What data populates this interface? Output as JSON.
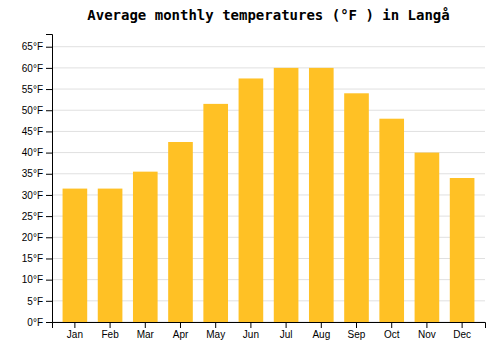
{
  "chart_data": {
    "type": "bar",
    "title": "Average monthly temperatures (°F ) in Langå",
    "categories": [
      "Jan",
      "Feb",
      "Mar",
      "Apr",
      "May",
      "Jun",
      "Jul",
      "Aug",
      "Sep",
      "Oct",
      "Nov",
      "Dec"
    ],
    "values": [
      31.5,
      31.5,
      35.5,
      42.5,
      51.5,
      57.5,
      60.0,
      60.0,
      54.0,
      48.0,
      40.0,
      34.0
    ],
    "color": "#FFC125",
    "ylim": [
      0,
      68
    ],
    "yticks": [
      {
        "value": 0,
        "label": "0°F"
      },
      {
        "value": 5,
        "label": "5°F"
      },
      {
        "value": 10,
        "label": "10°F"
      },
      {
        "value": 15,
        "label": "15°F"
      },
      {
        "value": 20,
        "label": "20°F"
      },
      {
        "value": 25,
        "label": "25°F"
      },
      {
        "value": 30,
        "label": "30°F"
      },
      {
        "value": 35,
        "label": "35°F"
      },
      {
        "value": 40,
        "label": "40°F"
      },
      {
        "value": 45,
        "label": "45°F"
      },
      {
        "value": 50,
        "label": "50°F"
      },
      {
        "value": 55,
        "label": "55°F"
      },
      {
        "value": 60,
        "label": "60°F"
      },
      {
        "value": 65,
        "label": "65°F"
      }
    ],
    "grid": true
  }
}
